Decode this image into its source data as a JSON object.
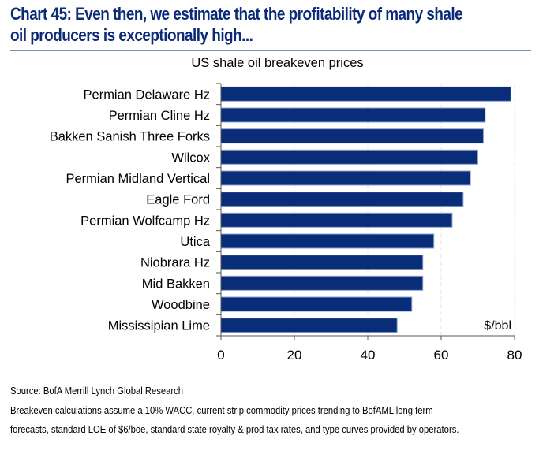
{
  "header": {
    "title": "Chart 45: Even then, we estimate that the profitability of many shale oil producers is exceptionally high...",
    "title_line1": "Chart 45: Even then, we estimate that the profitability of many shale",
    "title_line2": "oil producers is exceptionally high..."
  },
  "colors": {
    "title": "#0b2a78",
    "bar": "#0a2d7a",
    "bar_edge": "#8ea2cc",
    "rule": "#7f93ba",
    "grid": "#e6e6e6",
    "axis": "#555555"
  },
  "chart_data": {
    "type": "bar",
    "orientation": "horizontal",
    "title": "US shale oil breakeven prices",
    "xlabel": "$/bbl",
    "ylabel": "",
    "categories": [
      "Permian Delaware Hz",
      "Permian Cline Hz",
      "Bakken Sanish Three Forks",
      "Wilcox",
      "Permian Midland Vertical",
      "Eagle Ford",
      "Permian Wolfcamp Hz",
      "Utica",
      "Niobrara Hz",
      "Mid Bakken",
      "Woodbine",
      "Mississipian Lime"
    ],
    "values": [
      79,
      72,
      71.5,
      70,
      68,
      66,
      63,
      58,
      55,
      55,
      52,
      48
    ],
    "xlim": [
      0,
      80
    ],
    "xticks": [
      0,
      20,
      40,
      60,
      80
    ],
    "xtick_labels": [
      "0",
      "20",
      "40",
      "60",
      "80"
    ],
    "grid": true,
    "legend": "none",
    "unit_annotation": "$/bbl"
  },
  "footer": {
    "source": "Source: BofA Merrill Lynch Global Research",
    "note_line1": "Breakeven calculations assume a 10% WACC, current strip commodity prices trending to BofAML long term",
    "note_line2": "forecasts, standard LOE of $6/boe, standard state royalty & prod tax rates, and type curves provided by operators."
  }
}
